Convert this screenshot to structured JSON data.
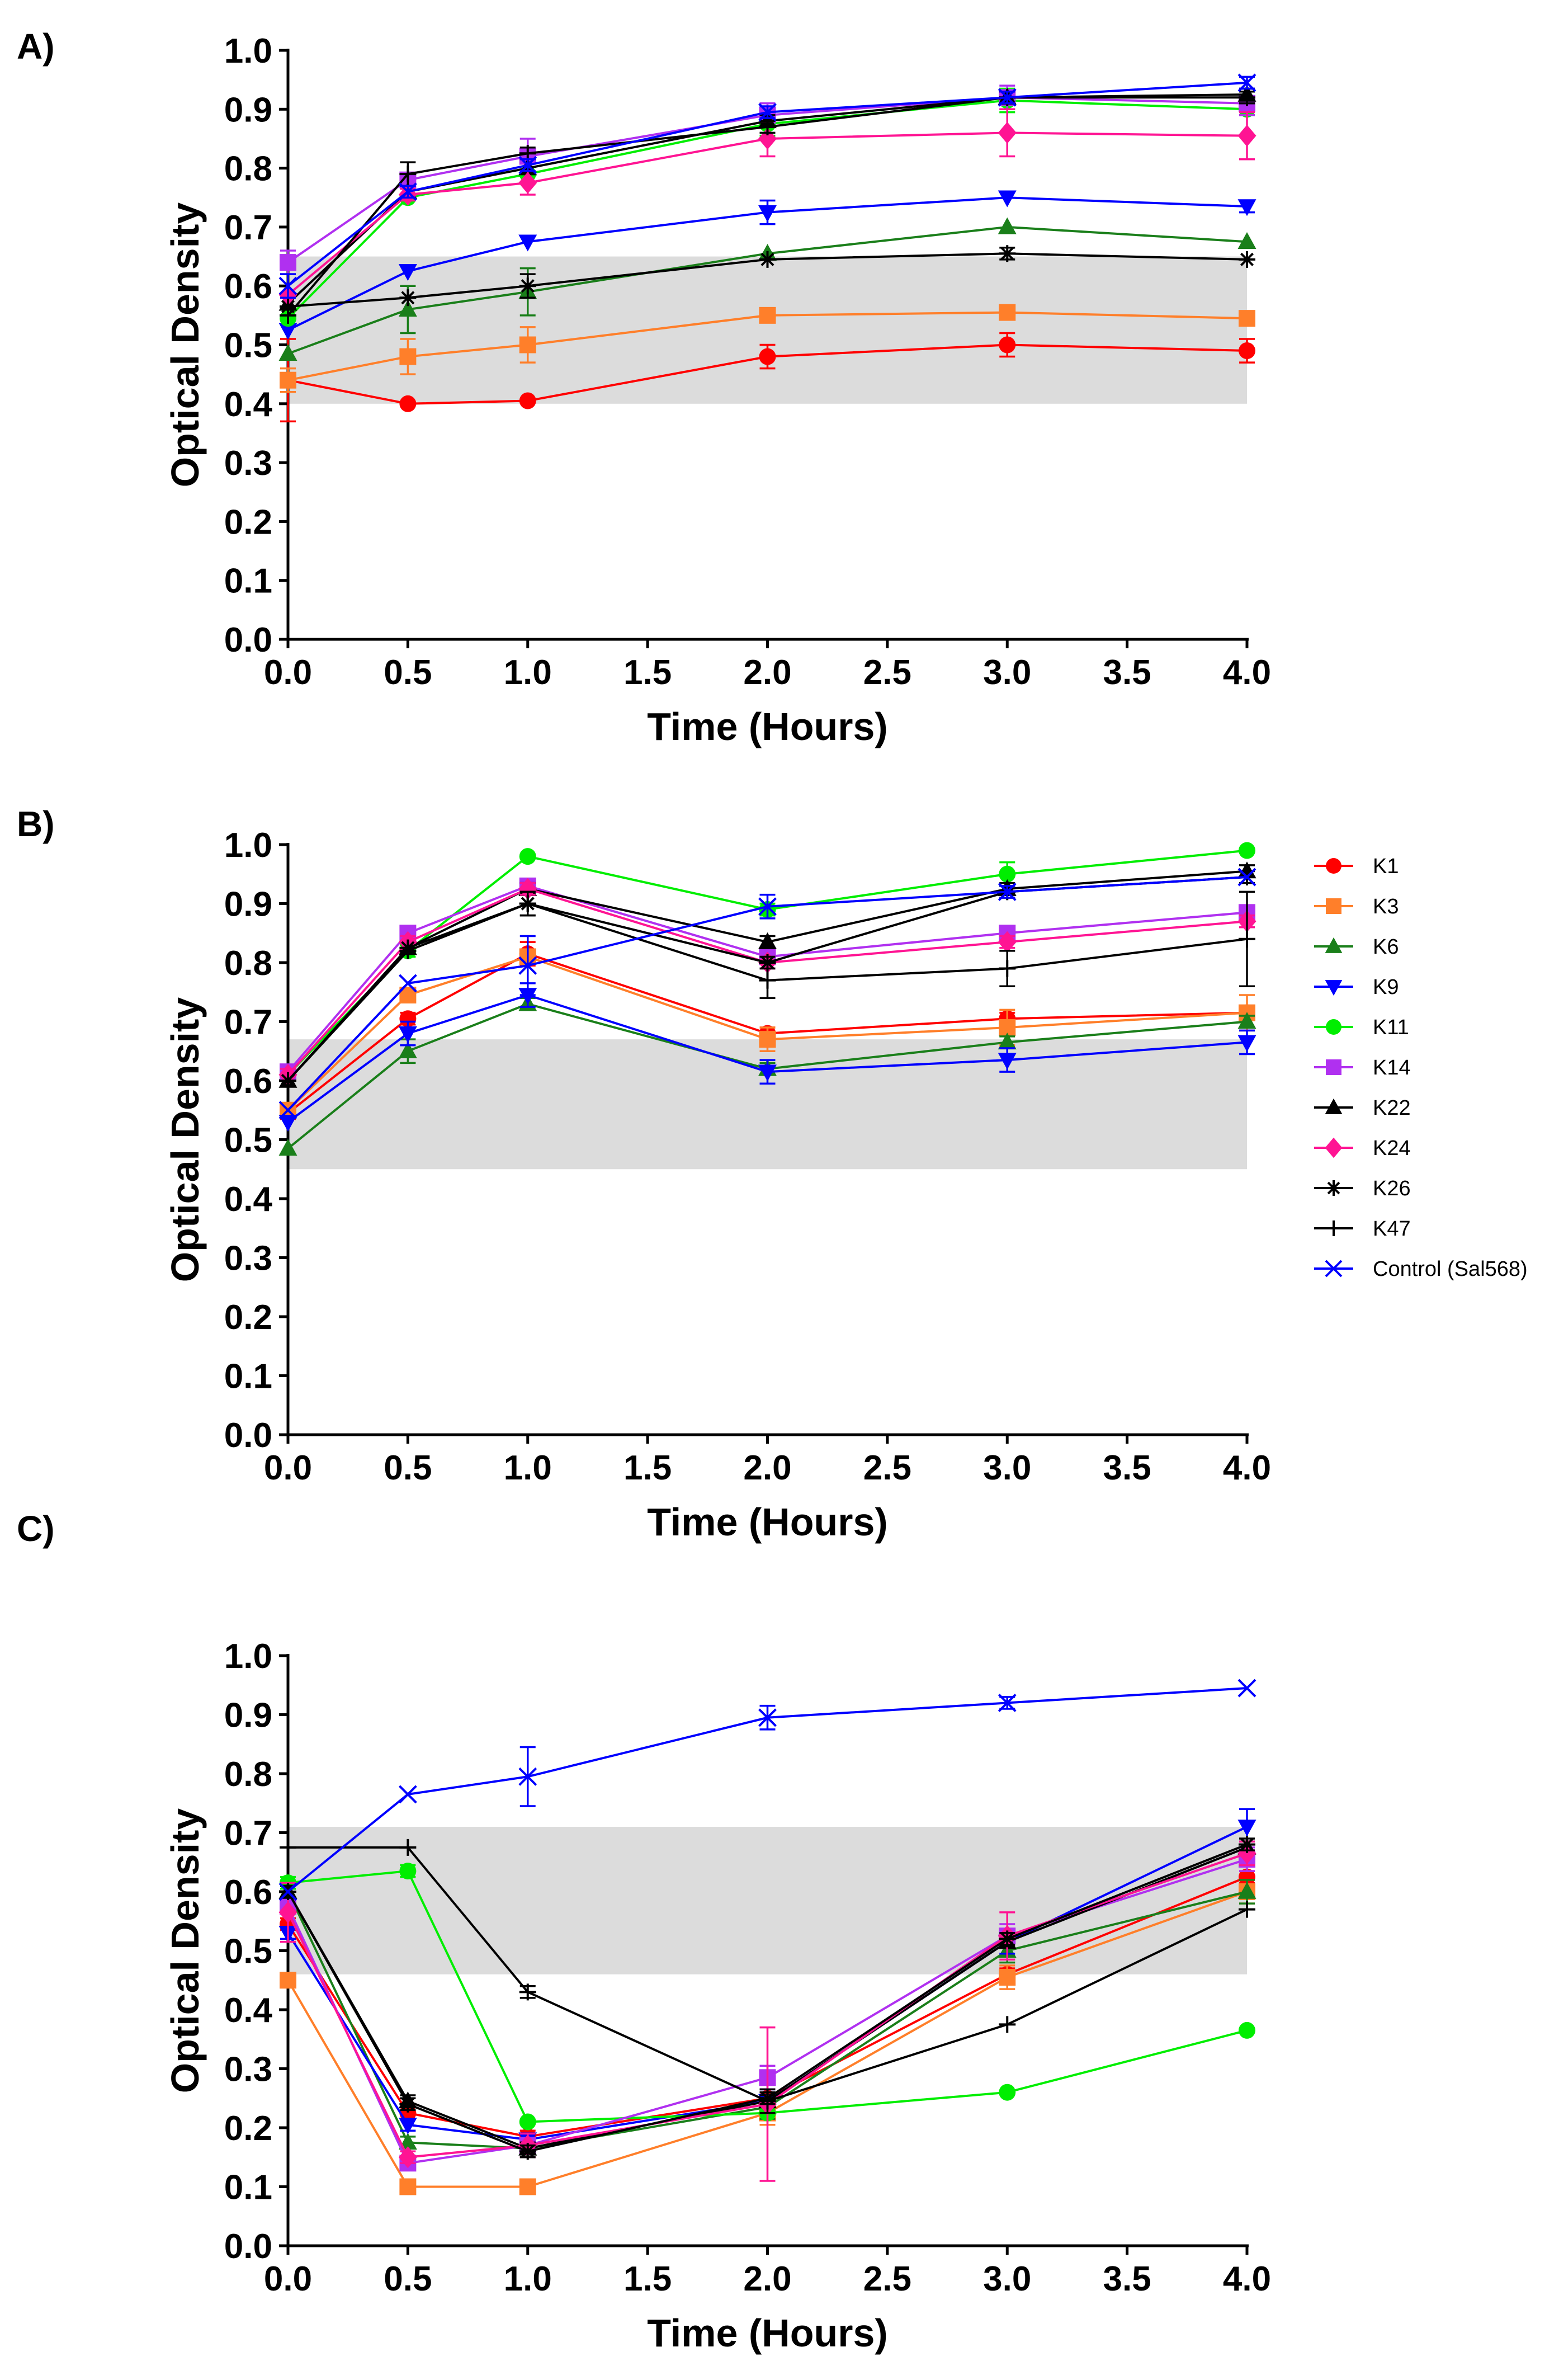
{
  "legend": [
    {
      "name": "K1",
      "color": "#ff0000",
      "marker": "circle"
    },
    {
      "name": "K3",
      "color": "#ff7f2a",
      "marker": "square"
    },
    {
      "name": "K6",
      "color": "#1a7f1a",
      "marker": "triangle-up"
    },
    {
      "name": "K9",
      "color": "#0000ff",
      "marker": "triangle-down"
    },
    {
      "name": "K11",
      "color": "#00ee00",
      "marker": "circle"
    },
    {
      "name": "K14",
      "color": "#b030f0",
      "marker": "square"
    },
    {
      "name": "K22",
      "color": "#000000",
      "marker": "triangle-up"
    },
    {
      "name": "K24",
      "color": "#ff1493",
      "marker": "diamond"
    },
    {
      "name": "K26",
      "color": "#000000",
      "marker": "asterisk"
    },
    {
      "name": "K47",
      "color": "#000000",
      "marker": "plus"
    },
    {
      "name": "Control (Sal568)",
      "color": "#0000ff",
      "marker": "x"
    }
  ],
  "chart_data": [
    {
      "label": "A)",
      "type": "line",
      "xlabel": "Time (Hours)",
      "ylabel": "Optical Density",
      "xlim": [
        0,
        4
      ],
      "ylim": [
        0,
        1
      ],
      "xticks": [
        "0.0",
        "0.5",
        "1.0",
        "1.5",
        "2.0",
        "2.5",
        "3.0",
        "3.5",
        "4.0"
      ],
      "yticks": [
        "0.0",
        "0.1",
        "0.2",
        "0.3",
        "0.4",
        "0.5",
        "0.6",
        "0.7",
        "0.8",
        "0.9",
        "1.0"
      ],
      "shaded_band": [
        0.4,
        0.65
      ],
      "x": [
        0,
        0.5,
        1,
        2,
        3,
        4
      ],
      "series": [
        {
          "name": "K1",
          "values": [
            0.44,
            0.4,
            0.405,
            0.48,
            0.5,
            0.49
          ],
          "errors": [
            0.07,
            0,
            0,
            0.02,
            0.02,
            0.02
          ]
        },
        {
          "name": "K3",
          "values": [
            0.44,
            0.48,
            0.5,
            0.55,
            0.555,
            0.545
          ],
          "errors": [
            0.02,
            0.03,
            0.03,
            0.01,
            0.01,
            0.01
          ]
        },
        {
          "name": "K6",
          "values": [
            0.485,
            0.56,
            0.59,
            0.655,
            0.7,
            0.675
          ],
          "errors": [
            0,
            0.04,
            0.04,
            0,
            0,
            0
          ]
        },
        {
          "name": "K9",
          "values": [
            0.525,
            0.625,
            0.675,
            0.725,
            0.75,
            0.735
          ],
          "errors": [
            0,
            0,
            0,
            0.02,
            0,
            0.01
          ]
        },
        {
          "name": "K11",
          "values": [
            0.545,
            0.75,
            0.79,
            0.875,
            0.915,
            0.9
          ],
          "errors": [
            0,
            0,
            0,
            0.02,
            0.02,
            0.01
          ]
        },
        {
          "name": "K14",
          "values": [
            0.64,
            0.78,
            0.82,
            0.89,
            0.92,
            0.91
          ],
          "errors": [
            0.02,
            0.01,
            0.03,
            0.02,
            0.02,
            0.02
          ]
        },
        {
          "name": "K22",
          "values": [
            0.57,
            0.76,
            0.8,
            0.88,
            0.92,
            0.925
          ],
          "errors": [
            0,
            0.01,
            0,
            0.01,
            0.01,
            0.01
          ]
        },
        {
          "name": "K24",
          "values": [
            0.585,
            0.755,
            0.775,
            0.85,
            0.86,
            0.855
          ],
          "errors": [
            0,
            0.01,
            0.02,
            0.03,
            0.04,
            0.04
          ]
        },
        {
          "name": "K26",
          "values": [
            0.565,
            0.58,
            0.6,
            0.645,
            0.655,
            0.645
          ],
          "errors": [
            0,
            0,
            0.02,
            0,
            0.01,
            0
          ]
        },
        {
          "name": "K47",
          "values": [
            0.55,
            0.79,
            0.825,
            0.87,
            0.92,
            0.92
          ],
          "errors": [
            0,
            0.02,
            0.01,
            0.01,
            0.01,
            0.01
          ]
        },
        {
          "name": "Control (Sal568)",
          "values": [
            0.6,
            0.76,
            0.805,
            0.895,
            0.92,
            0.945
          ],
          "errors": [
            0.02,
            0.01,
            0.01,
            0.01,
            0.01,
            0.01
          ]
        }
      ]
    },
    {
      "label": "B)",
      "type": "line",
      "xlabel": "Time (Hours)",
      "ylabel": "Optical Density",
      "xlim": [
        0,
        4
      ],
      "ylim": [
        0,
        1
      ],
      "xticks": [
        "0.0",
        "0.5",
        "1.0",
        "1.5",
        "2.0",
        "2.5",
        "3.0",
        "3.5",
        "4.0"
      ],
      "yticks": [
        "0.0",
        "0.1",
        "0.2",
        "0.3",
        "0.4",
        "0.5",
        "0.6",
        "0.7",
        "0.8",
        "0.9",
        "1.0"
      ],
      "shaded_band": [
        0.45,
        0.67
      ],
      "x": [
        0,
        0.5,
        1,
        2,
        3,
        4
      ],
      "series": [
        {
          "name": "K1",
          "values": [
            0.545,
            0.705,
            0.815,
            0.68,
            0.705,
            0.715
          ],
          "errors": [
            0.01,
            0.01,
            0.02,
            0.01,
            0.01,
            0.01
          ]
        },
        {
          "name": "K3",
          "values": [
            0.55,
            0.745,
            0.81,
            0.67,
            0.69,
            0.715
          ],
          "errors": [
            0.01,
            0.01,
            0.01,
            0.02,
            0.03,
            0.03
          ]
        },
        {
          "name": "K6",
          "values": [
            0.485,
            0.65,
            0.73,
            0.62,
            0.665,
            0.7
          ],
          "errors": [
            0,
            0.02,
            0.01,
            0.01,
            0.01,
            0.01
          ]
        },
        {
          "name": "K9",
          "values": [
            0.53,
            0.68,
            0.745,
            0.615,
            0.635,
            0.665
          ],
          "errors": [
            0,
            0.02,
            0.02,
            0.02,
            0.02,
            0.02
          ]
        },
        {
          "name": "K11",
          "values": [
            0.61,
            0.82,
            0.98,
            0.89,
            0.95,
            0.99
          ],
          "errors": [
            0.01,
            0.01,
            0,
            0.01,
            0.02,
            0
          ]
        },
        {
          "name": "K14",
          "values": [
            0.615,
            0.85,
            0.93,
            0.81,
            0.85,
            0.885
          ],
          "errors": [
            0.01,
            0.01,
            0.01,
            0.01,
            0.01,
            0.01
          ]
        },
        {
          "name": "K22",
          "values": [
            0.6,
            0.825,
            0.925,
            0.835,
            0.925,
            0.955
          ],
          "errors": [
            0,
            0,
            0.01,
            0.01,
            0.01,
            0.01
          ]
        },
        {
          "name": "K24",
          "values": [
            0.61,
            0.835,
            0.925,
            0.8,
            0.835,
            0.87
          ],
          "errors": [
            0.01,
            0.01,
            0.01,
            0.01,
            0.01,
            0.01
          ]
        },
        {
          "name": "K26",
          "values": [
            0.6,
            0.825,
            0.9,
            0.8,
            0.92,
            0.945
          ],
          "errors": [
            0,
            0,
            0.02,
            0.01,
            0.01,
            0.01
          ]
        },
        {
          "name": "K47",
          "values": [
            0.6,
            0.82,
            0.9,
            0.77,
            0.79,
            0.84
          ],
          "errors": [
            0,
            0,
            0.02,
            0.03,
            0.03,
            0.08
          ]
        },
        {
          "name": "Control (Sal568)",
          "values": [
            0.55,
            0.765,
            0.795,
            0.895,
            0.92,
            0.945
          ],
          "errors": [
            0,
            0,
            0.05,
            0.02,
            0.01,
            0
          ]
        }
      ]
    },
    {
      "label": "C)",
      "type": "line",
      "xlabel": "Time (Hours)",
      "ylabel": "Optical Density",
      "xlim": [
        0,
        4
      ],
      "ylim": [
        0,
        1
      ],
      "xticks": [
        "0.0",
        "0.5",
        "1.0",
        "1.5",
        "2.0",
        "2.5",
        "3.0",
        "3.5",
        "4.0"
      ],
      "yticks": [
        "0.0",
        "0.1",
        "0.2",
        "0.3",
        "0.4",
        "0.5",
        "0.6",
        "0.7",
        "0.8",
        "0.9",
        "1.0"
      ],
      "shaded_band": [
        0.46,
        0.71
      ],
      "x": [
        0,
        0.5,
        1,
        2,
        3,
        4
      ],
      "series": [
        {
          "name": "K1",
          "values": [
            0.545,
            0.225,
            0.185,
            0.25,
            0.46,
            0.625
          ],
          "errors": [
            0.01,
            0.01,
            0.01,
            0.01,
            0.01,
            0.01
          ]
        },
        {
          "name": "K3",
          "values": [
            0.45,
            0.1,
            0.1,
            0.225,
            0.455,
            0.6
          ],
          "errors": [
            0.01,
            0,
            0,
            0.02,
            0.02,
            0.02
          ]
        },
        {
          "name": "K6",
          "values": [
            0.6,
            0.175,
            0.165,
            0.235,
            0.5,
            0.6
          ],
          "errors": [
            0.01,
            0.01,
            0.01,
            0.02,
            0.02,
            0.02
          ]
        },
        {
          "name": "K9",
          "values": [
            0.53,
            0.205,
            0.18,
            0.245,
            0.515,
            0.71
          ],
          "errors": [
            0.01,
            0.01,
            0.01,
            0.02,
            0.02,
            0.03
          ]
        },
        {
          "name": "K11",
          "values": [
            0.615,
            0.635,
            0.21,
            0.225,
            0.26,
            0.365
          ],
          "errors": [
            0.01,
            0.01,
            0,
            0,
            0,
            0
          ]
        },
        {
          "name": "K14",
          "values": [
            0.575,
            0.14,
            0.17,
            0.285,
            0.525,
            0.655
          ],
          "errors": [
            0.01,
            0.01,
            0.01,
            0.02,
            0.02,
            0.02
          ]
        },
        {
          "name": "K22",
          "values": [
            0.6,
            0.245,
            0.165,
            0.245,
            0.515,
            0.675
          ],
          "errors": [
            0.01,
            0.01,
            0.01,
            0.01,
            0.01,
            0.01
          ]
        },
        {
          "name": "K24",
          "values": [
            0.565,
            0.15,
            0.17,
            0.24,
            0.525,
            0.665
          ],
          "errors": [
            0.05,
            0.01,
            0.02,
            0.13,
            0.04,
            0.02
          ]
        },
        {
          "name": "K26",
          "values": [
            0.6,
            0.24,
            0.16,
            0.25,
            0.52,
            0.68
          ],
          "errors": [
            0.01,
            0.01,
            0.01,
            0.01,
            0.01,
            0.01
          ]
        },
        {
          "name": "K47",
          "values": [
            0.675,
            0.675,
            0.43,
            0.245,
            0.375,
            0.57
          ],
          "errors": [
            0,
            0,
            0.01,
            0.02,
            0,
            0
          ]
        },
        {
          "name": "Control (Sal568)",
          "values": [
            0.6,
            0.765,
            0.795,
            0.895,
            0.92,
            0.945
          ],
          "errors": [
            0,
            0,
            0.05,
            0.02,
            0.01,
            0
          ]
        }
      ]
    }
  ]
}
